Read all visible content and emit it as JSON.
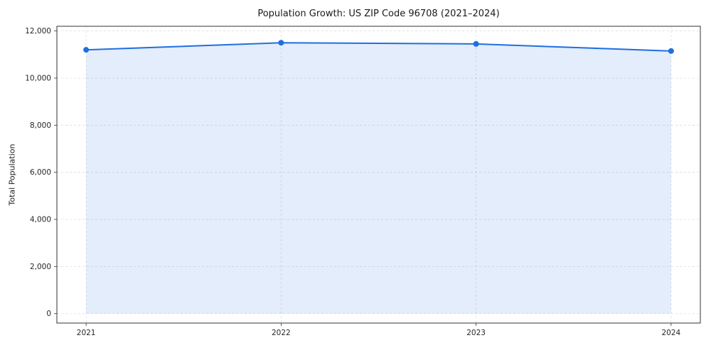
{
  "chart_data": {
    "type": "line",
    "title": "Population Growth: US ZIP Code 96708 (2021–2024)",
    "xlabel": "",
    "ylabel": "Total Population",
    "x": [
      2021,
      2022,
      2023,
      2024
    ],
    "xtick_labels": [
      "2021",
      "2022",
      "2023",
      "2024"
    ],
    "series": [
      {
        "name": "Total Population",
        "values": [
          11200,
          11500,
          11450,
          11150
        ]
      }
    ],
    "ylim": [
      0,
      12000
    ],
    "yticks": [
      0,
      2000,
      4000,
      6000,
      8000,
      10000,
      12000
    ],
    "ytick_labels": [
      "0",
      "2,000",
      "4,000",
      "6,000",
      "8,000",
      "10,000",
      "12,000"
    ],
    "grid": "dashed",
    "legend": "none",
    "area": true,
    "line_color": "#1f6fe0",
    "fill_color": "#1f6fe0",
    "fill_opacity": 0.12,
    "marker": "circle",
    "marker_radius": 4
  }
}
